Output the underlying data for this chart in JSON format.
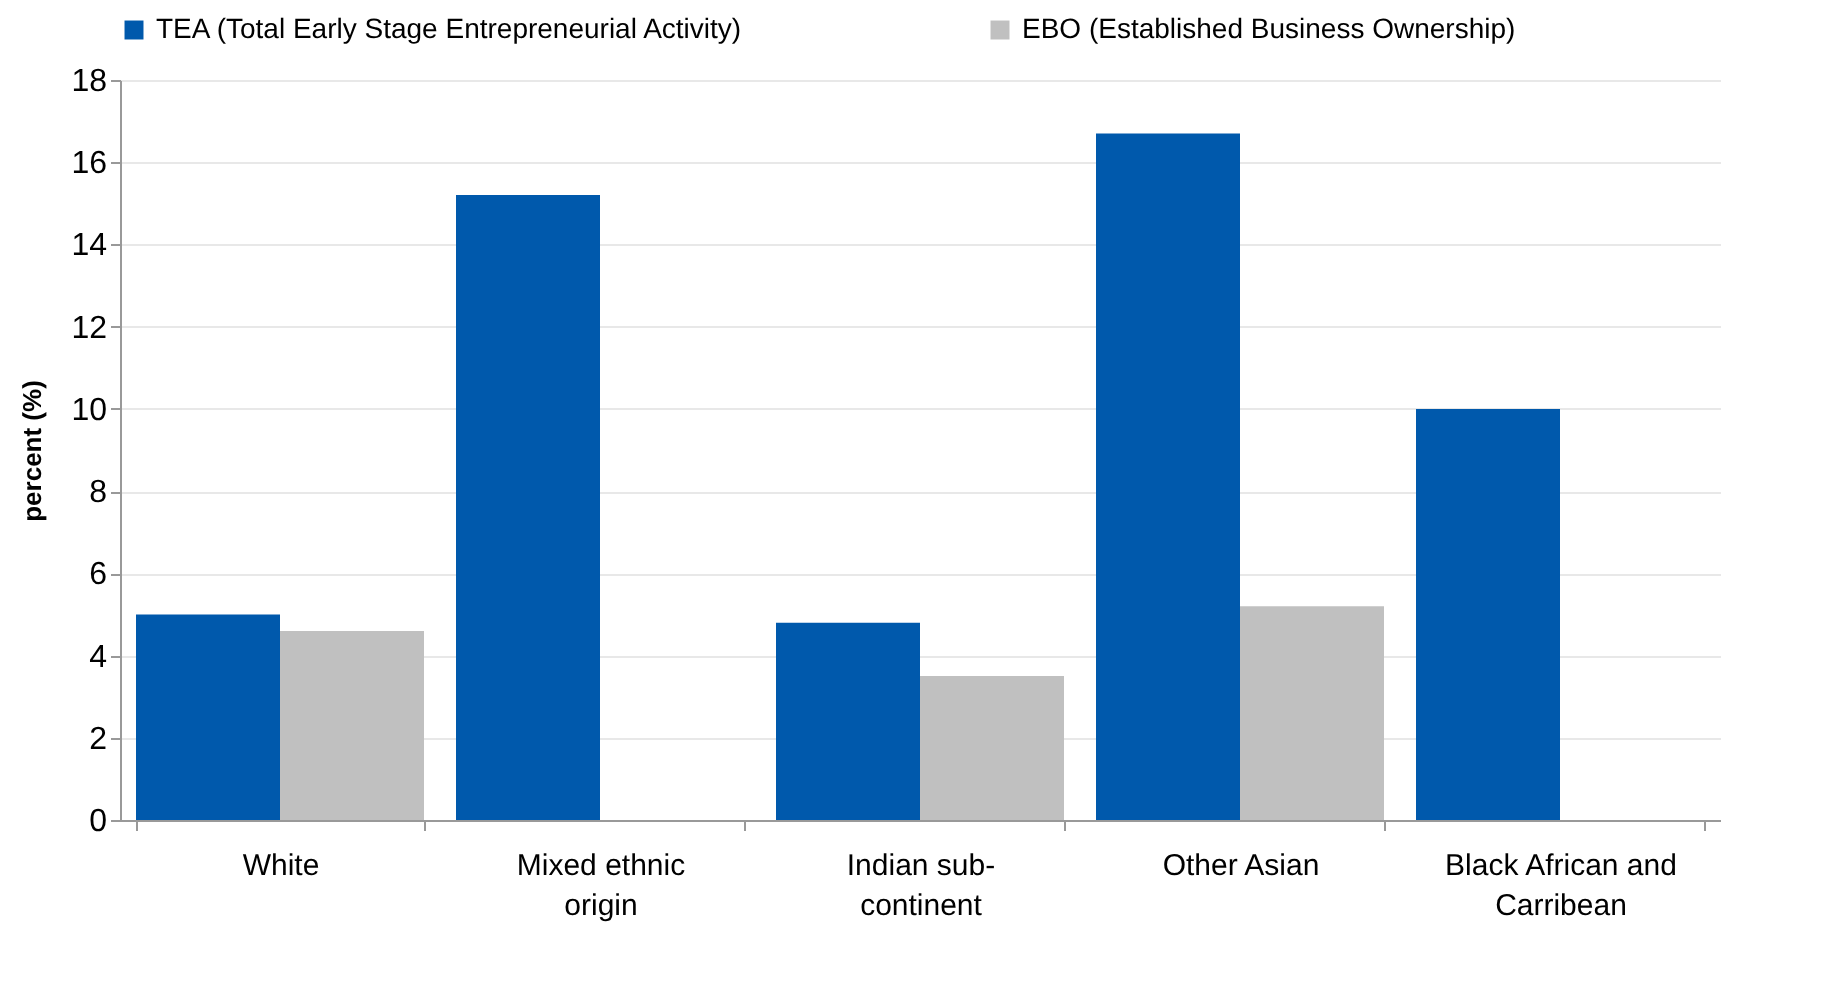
{
  "chart_data": {
    "type": "bar",
    "ylabel": "percent (%)",
    "categories": [
      "White",
      "Mixed ethnic origin",
      "Indian sub-continent",
      "Other Asian",
      "Black African and Carribean"
    ],
    "series": [
      {
        "name": "TEA (Total Early Stage Entrepreneurial Activity)",
        "color": "#0059ac",
        "values": [
          5.0,
          15.2,
          4.8,
          16.7,
          10.0
        ]
      },
      {
        "name": "EBO (Established Business Ownership)",
        "color": "#c0c0c0",
        "values": [
          4.6,
          null,
          3.5,
          5.2,
          null
        ]
      }
    ],
    "ylim": [
      0,
      18
    ],
    "yticks": [
      0,
      2,
      4,
      6,
      8,
      10,
      12,
      14,
      16,
      18
    ],
    "grid": "y",
    "legend": "top"
  }
}
